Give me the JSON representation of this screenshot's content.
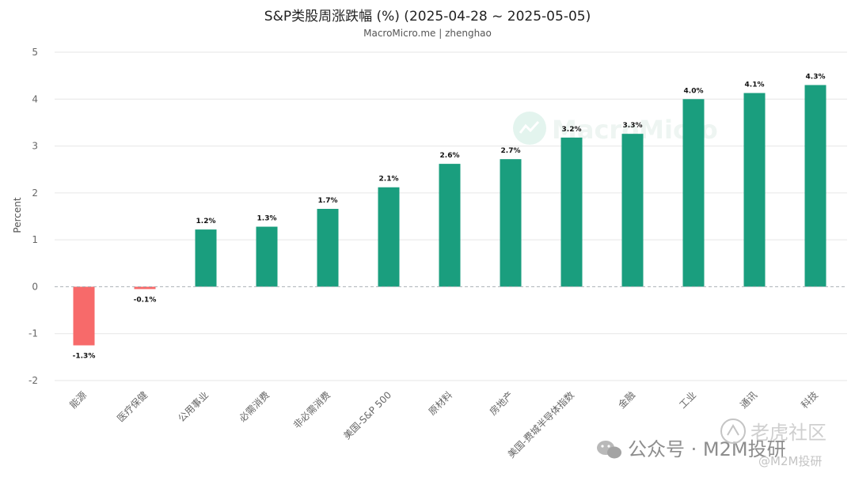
{
  "chart_data": {
    "type": "bar",
    "title": "S&P类股周涨跌幅 (%) (2025-04-28 ~ 2025-05-05)",
    "subtitle": "MacroMicro.me | zhenghao",
    "ylabel": "Percent",
    "xlabel": "",
    "ylim": [
      -2,
      5
    ],
    "yticks": [
      -2,
      -1,
      0,
      1,
      2,
      3,
      4,
      5
    ],
    "grid": true,
    "categories": [
      "能源",
      "医疗保健",
      "公用事业",
      "必需消费",
      "非必需消费",
      "美国-S&P 500",
      "原材料",
      "房地产",
      "美国-费城半导体指数",
      "金融",
      "工业",
      "通讯",
      "科技"
    ],
    "values": [
      -1.25,
      -0.05,
      1.22,
      1.28,
      1.66,
      2.12,
      2.62,
      2.72,
      3.18,
      3.26,
      4.0,
      4.13,
      4.3
    ],
    "data_labels": [
      "-1.3%",
      "-0.1%",
      "1.2%",
      "1.3%",
      "1.7%",
      "2.1%",
      "2.6%",
      "2.7%",
      "3.2%",
      "3.3%",
      "4.0%",
      "4.1%",
      "4.3%"
    ],
    "colors": {
      "positive": "#1a9e7e",
      "negative": "#f76a6a",
      "grid": "#e6e6e6",
      "zero_line": "#a9b1b5",
      "axis_text": "#666666"
    },
    "watermark": "MacroMicro"
  },
  "footer": {
    "wechat_text": "公众号 · M2M投研",
    "community_text": "老虎社区",
    "community_handle": "@M2M投研"
  }
}
